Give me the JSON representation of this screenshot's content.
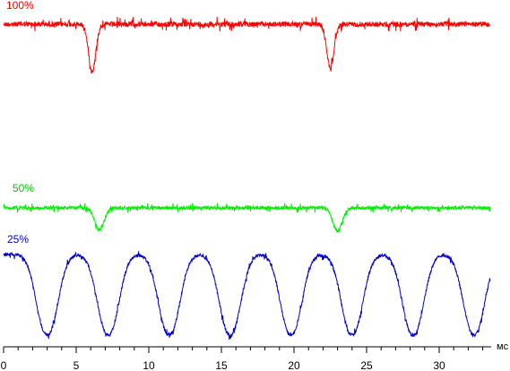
{
  "chart_data": {
    "type": "line",
    "title": "",
    "xlabel": "мс",
    "ylabel": "",
    "xlim": [
      0,
      34
    ],
    "xticks": [
      0,
      5,
      10,
      15,
      20,
      25,
      30
    ],
    "grid": false,
    "legend": "none",
    "series": [
      {
        "name": "100%",
        "color": "#ff0000",
        "noise": 0.25,
        "period": 16.4,
        "start": 0,
        "end": 33.5,
        "dips": [
          {
            "t": 6.1,
            "depth": 4.8,
            "width": 0.35
          },
          {
            "t": 22.5,
            "depth": 4.4,
            "width": 0.35
          }
        ]
      },
      {
        "name": "50%",
        "color": "#00ee00",
        "noise": 0.18,
        "period": 16.4,
        "start": 0,
        "end": 33.5,
        "dips": [
          {
            "t": 6.6,
            "depth": 2.5,
            "width": 0.45
          },
          {
            "t": 23.0,
            "depth": 2.6,
            "width": 0.45
          }
        ]
      },
      {
        "name": "25%",
        "color": "#0000cc",
        "noise": 0.15,
        "period": 4.2,
        "start": 0,
        "end": 33.5,
        "dips": [
          {
            "t": 3.0,
            "depth": 7.5,
            "width": 1.0
          },
          {
            "t": 7.2,
            "depth": 7.5,
            "width": 1.0
          },
          {
            "t": 11.4,
            "depth": 7.5,
            "width": 1.0
          },
          {
            "t": 15.6,
            "depth": 7.5,
            "width": 1.0
          },
          {
            "t": 19.8,
            "depth": 7.5,
            "width": 1.0
          },
          {
            "t": 24.0,
            "depth": 7.5,
            "width": 1.0
          },
          {
            "t": 28.2,
            "depth": 7.5,
            "width": 1.0
          },
          {
            "t": 32.4,
            "depth": 7.5,
            "width": 1.0
          }
        ]
      }
    ]
  }
}
